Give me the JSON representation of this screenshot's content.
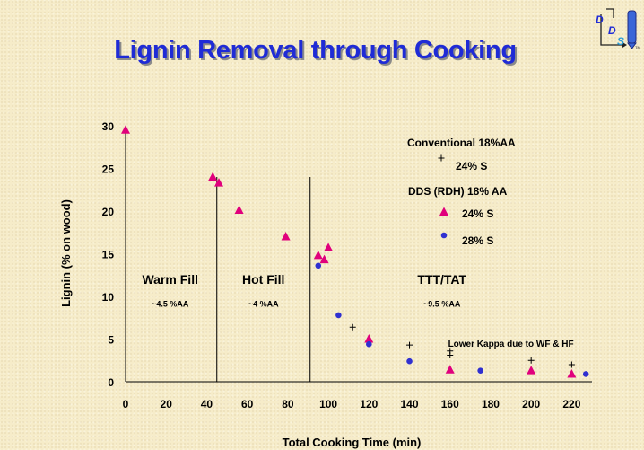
{
  "title": "Lignin Removal through Cooking",
  "logo": {
    "letters": [
      "D",
      "D",
      "S"
    ],
    "mark": "TM"
  },
  "chart_data": {
    "type": "scatter",
    "xlabel": "Total Cooking Time (min)",
    "ylabel": "Lignin (% on wood)",
    "xlim": [
      0,
      230
    ],
    "ylim": [
      0,
      30
    ],
    "xticks": [
      0,
      20,
      40,
      60,
      80,
      100,
      120,
      140,
      160,
      180,
      200,
      220
    ],
    "yticks": [
      0,
      5,
      10,
      15,
      20,
      25,
      30
    ],
    "grid": false,
    "legend_position": "top-right",
    "legend": {
      "group1": "Conventional 18%AA",
      "group1_item": "24% S",
      "group2": "DDS (RDH) 18% AA",
      "group2_items": [
        "24% S",
        "28% S"
      ]
    },
    "series": [
      {
        "name": "Conventional 18%AA 24% S",
        "marker": "plus",
        "color": "#000000",
        "points": [
          {
            "x": 112,
            "y": 6.4
          },
          {
            "x": 140,
            "y": 4.3
          },
          {
            "x": 160,
            "y": 3.6
          },
          {
            "x": 160,
            "y": 3.1
          },
          {
            "x": 200,
            "y": 2.5
          },
          {
            "x": 220,
            "y": 2.0
          }
        ]
      },
      {
        "name": "DDS (RDH) 18% AA 24% S",
        "marker": "triangle",
        "color": "#e0007c",
        "points": [
          {
            "x": 0,
            "y": 29.5
          },
          {
            "x": 43,
            "y": 24.0
          },
          {
            "x": 46,
            "y": 23.3
          },
          {
            "x": 56,
            "y": 20.1
          },
          {
            "x": 79,
            "y": 17.0
          },
          {
            "x": 95,
            "y": 14.8
          },
          {
            "x": 98,
            "y": 14.3
          },
          {
            "x": 100,
            "y": 15.7
          },
          {
            "x": 120,
            "y": 5.0
          },
          {
            "x": 160,
            "y": 1.4
          },
          {
            "x": 200,
            "y": 1.3
          },
          {
            "x": 220,
            "y": 0.9
          }
        ]
      },
      {
        "name": "DDS (RDH) 18% AA 28% S",
        "marker": "circle",
        "color": "#3030d0",
        "points": [
          {
            "x": 95,
            "y": 13.6
          },
          {
            "x": 105,
            "y": 7.8
          },
          {
            "x": 120,
            "y": 4.4
          },
          {
            "x": 140,
            "y": 2.4
          },
          {
            "x": 175,
            "y": 1.3
          },
          {
            "x": 227,
            "y": 0.9
          }
        ]
      }
    ],
    "phase_dividers": [
      45,
      91
    ],
    "annotations": [
      {
        "text": "Warm Fill",
        "x": 22,
        "y": 11.5,
        "style": "large"
      },
      {
        "text": "~4.5 %AA",
        "x": 22,
        "y": 8.8,
        "style": "small"
      },
      {
        "text": "Hot Fill",
        "x": 68,
        "y": 11.5,
        "style": "large"
      },
      {
        "text": "~4 %AA",
        "x": 68,
        "y": 8.8,
        "style": "small"
      },
      {
        "text": "TTT/TAT",
        "x": 156,
        "y": 11.5,
        "style": "large"
      },
      {
        "text": "~9.5 %AA",
        "x": 156,
        "y": 8.8,
        "style": "small"
      },
      {
        "text": "Lower Kappa due to WF & HF",
        "x": 190,
        "y": 4.1,
        "style": "note"
      }
    ]
  }
}
